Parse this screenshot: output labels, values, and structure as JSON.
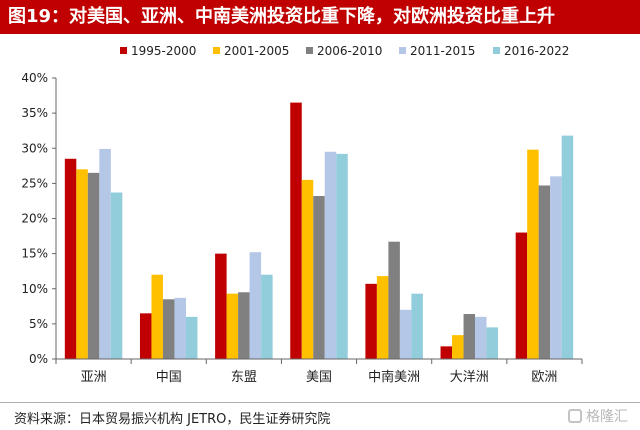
{
  "title": "图19：对美国、亚洲、中南美洲投资比重下降，对欧洲投资比重上升",
  "source": "资料来源：日本贸易振兴机构 JETRO，民生证券研究院",
  "watermark": "格隆汇",
  "chart_data": {
    "type": "bar",
    "categories": [
      "亚洲",
      "中国",
      "东盟",
      "美国",
      "中南美洲",
      "大洋洲",
      "欧洲"
    ],
    "series": [
      {
        "name": "1995-2000",
        "color": "#c00000",
        "values": [
          28.5,
          6.5,
          15.0,
          36.5,
          10.7,
          1.8,
          18.0
        ]
      },
      {
        "name": "2001-2005",
        "color": "#ffc000",
        "values": [
          27.0,
          12.0,
          9.3,
          25.5,
          11.8,
          3.4,
          29.8
        ]
      },
      {
        "name": "2006-2010",
        "color": "#808080",
        "values": [
          26.5,
          8.5,
          9.5,
          23.2,
          16.7,
          6.4,
          24.7
        ]
      },
      {
        "name": "2011-2015",
        "color": "#b4c7e7",
        "values": [
          29.9,
          8.7,
          15.2,
          29.5,
          7.0,
          6.0,
          26.0
        ]
      },
      {
        "name": "2016-2022",
        "color": "#92cddc",
        "values": [
          23.7,
          6.0,
          12.0,
          29.2,
          9.3,
          4.5,
          31.8
        ]
      }
    ],
    "yticks": [
      "0%",
      "5%",
      "10%",
      "15%",
      "20%",
      "25%",
      "30%",
      "35%",
      "40%"
    ],
    "ylim": [
      0,
      40
    ],
    "legend_position": "top",
    "grid": false
  }
}
